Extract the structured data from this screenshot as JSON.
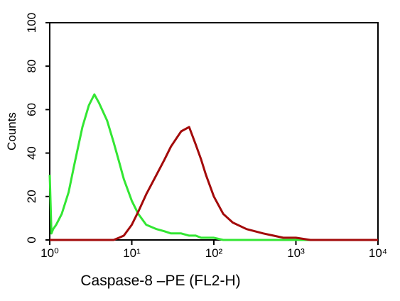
{
  "chart_data": {
    "type": "line",
    "x_label": "Caspase-8 –PE (FL2-H)",
    "y_label": "Counts",
    "x_log": true,
    "xlim": [
      1,
      10000
    ],
    "xticks": [
      {
        "value": 1,
        "label": "10⁰"
      },
      {
        "value": 10,
        "label": "10¹"
      },
      {
        "value": 100,
        "label": "10²"
      },
      {
        "value": 1000,
        "label": "10³"
      },
      {
        "value": 10000,
        "label": "10⁴"
      }
    ],
    "ylim": [
      0,
      100
    ],
    "yticks": [
      0,
      20,
      40,
      60,
      80,
      100
    ],
    "x": [
      1,
      1.05,
      1.1,
      1.2,
      1.4,
      1.7,
      2,
      2.5,
      3,
      3.5,
      4,
      5,
      6,
      7,
      8,
      10,
      12,
      15,
      20,
      25,
      30,
      40,
      50,
      60,
      70,
      80,
      100,
      130,
      170,
      250,
      400,
      700,
      1000,
      1500,
      3000,
      10000
    ],
    "series": [
      {
        "color": "#33e633",
        "values": [
          30,
          3,
          5,
          7,
          12,
          22,
          35,
          52,
          62,
          67,
          63,
          55,
          45,
          36,
          28,
          18,
          12,
          7,
          5,
          4,
          3,
          3,
          2,
          2,
          1,
          1,
          1,
          0,
          0,
          0,
          0,
          0,
          0,
          0,
          0,
          0
        ]
      },
      {
        "color": "#a30a0a",
        "values": [
          0,
          0,
          0,
          0,
          0,
          0,
          0,
          0,
          0,
          0,
          0,
          0,
          0,
          1,
          2,
          7,
          13,
          21,
          30,
          37,
          43,
          50,
          52,
          44,
          37,
          30,
          20,
          12,
          8,
          5,
          3,
          1,
          1,
          0,
          0,
          0
        ]
      }
    ]
  }
}
